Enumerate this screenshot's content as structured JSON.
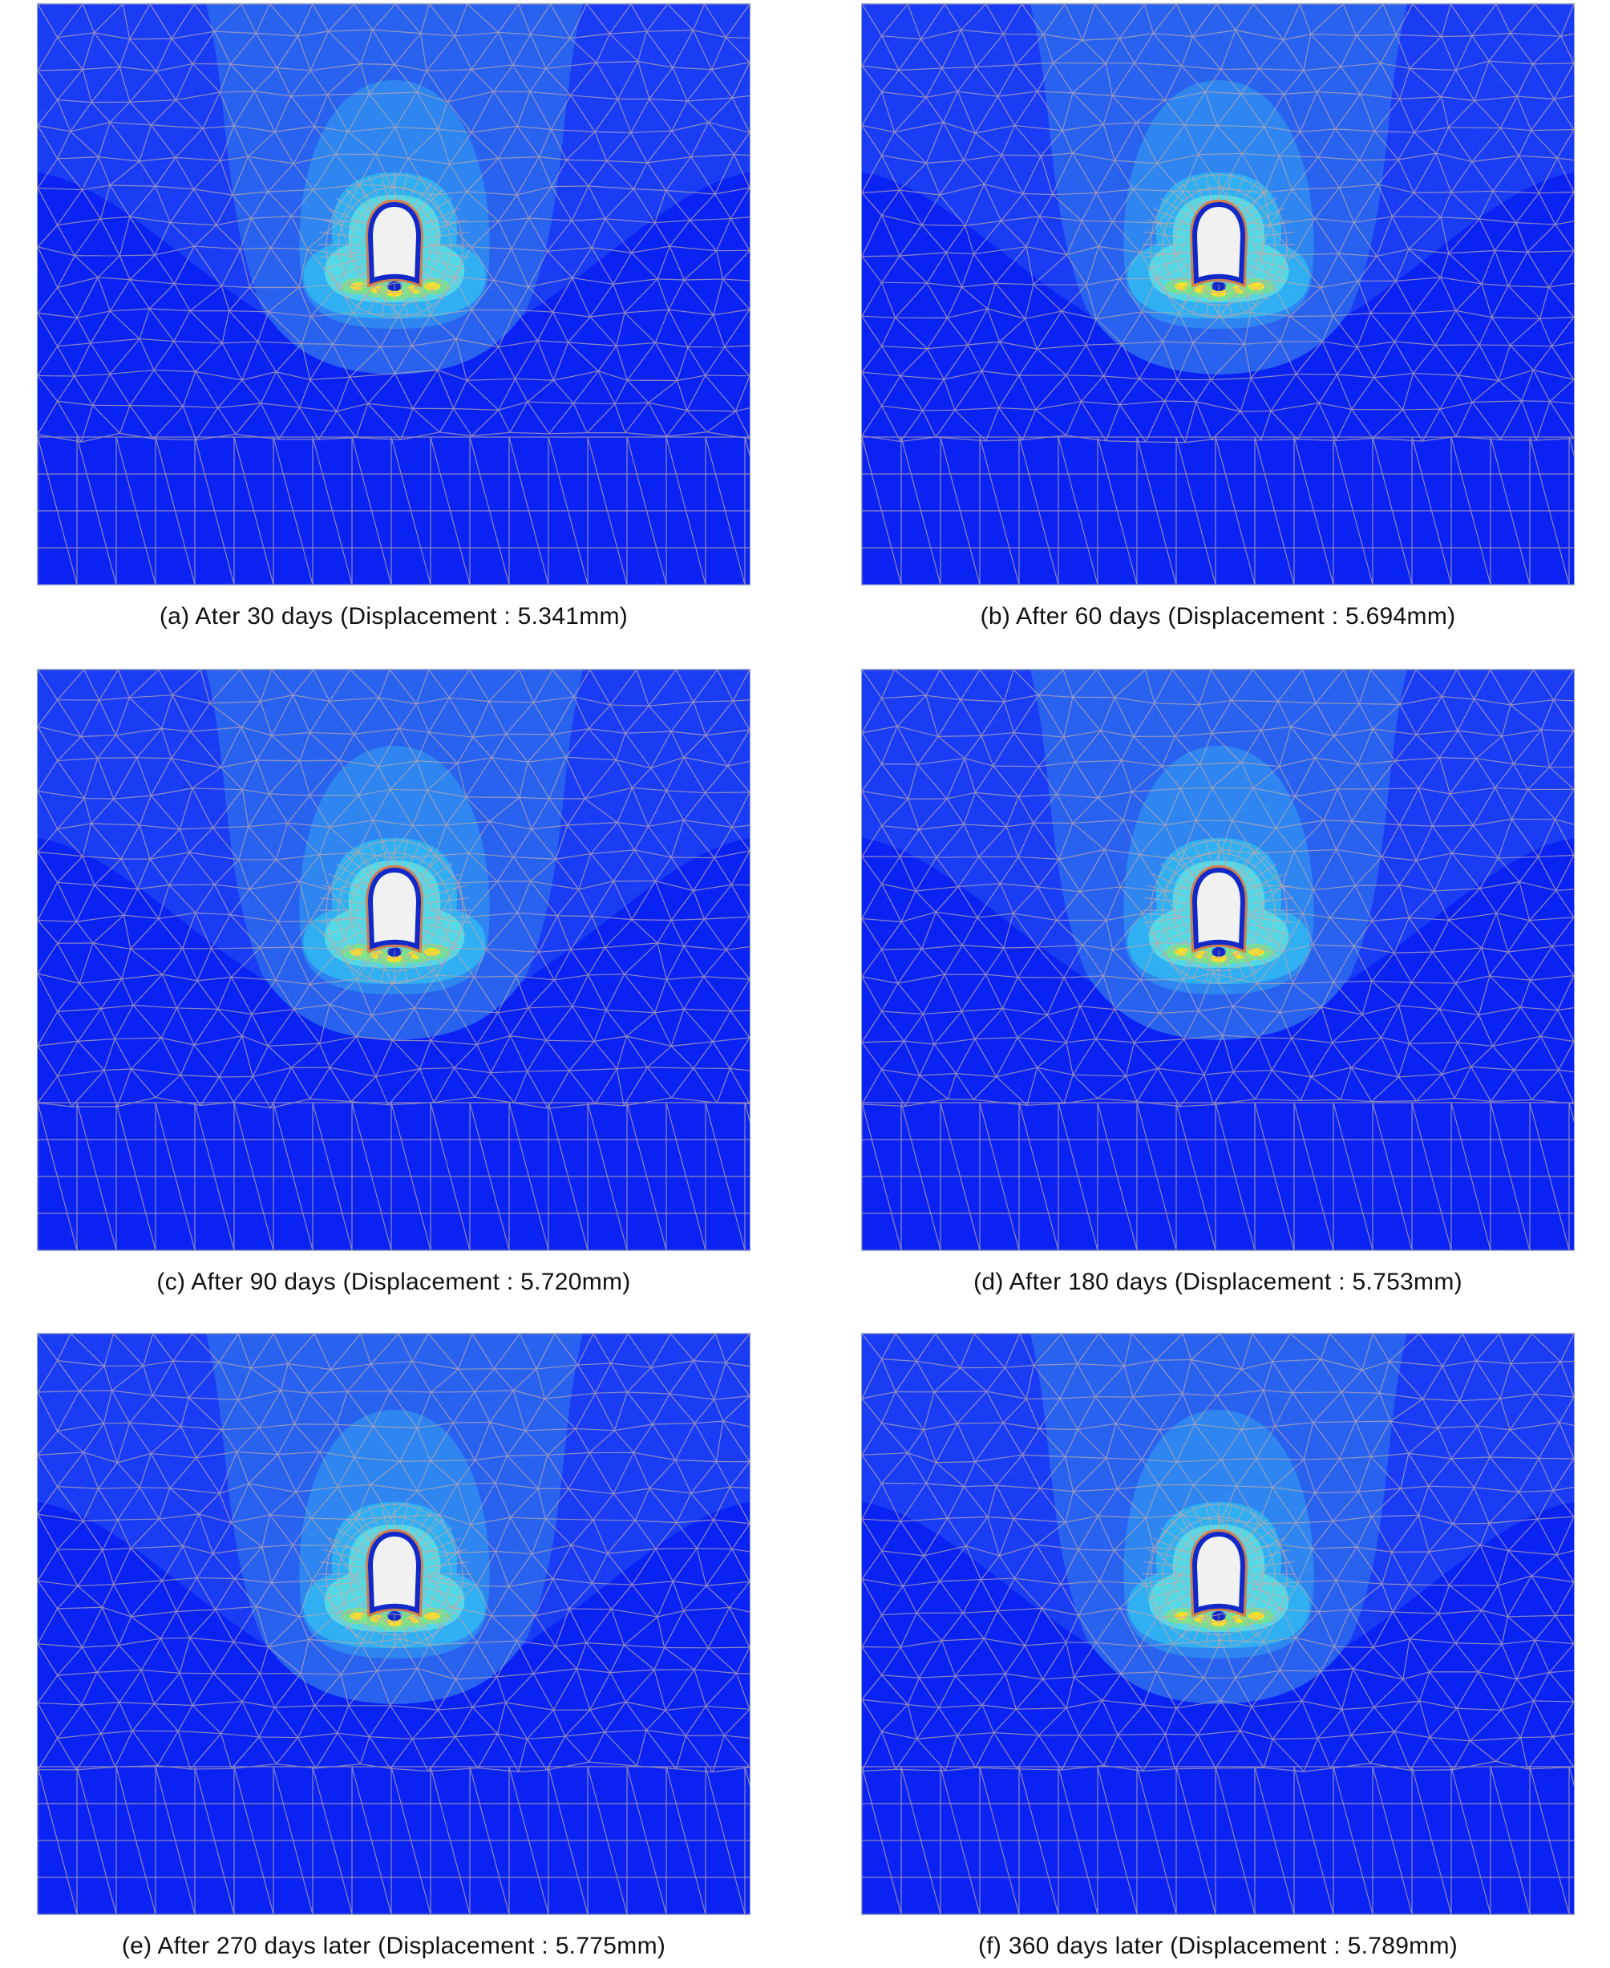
{
  "colors": {
    "outer_field": "#0b23f2",
    "field_2": "#1a3cf5",
    "field_3": "#2a62f0",
    "field_4": "#2f86f0",
    "field_5": "#30b0f2",
    "field_6": "#55d8e6",
    "hot_yellow": "#f6e12a",
    "hot_green": "#7be38a",
    "tunnel_fill": "#f1f1f1",
    "tunnel_ring": "#1029c8",
    "mesh_line": "#b9a8ae"
  },
  "panels": [
    {
      "caption": "(a)  Ater  30  days  (Displacement  :  5.341mm)"
    },
    {
      "caption": "(b)  After  60  days  (Displacement  :  5.694mm)"
    },
    {
      "caption": "(c)  After  90  days  (Displacement  :  5.720mm)"
    },
    {
      "caption": "(d)  After  180  days  (Displacement  :  5.753mm)"
    },
    {
      "caption": "(e)  After  270  days  later  (Displacement  :  5.775mm)"
    },
    {
      "caption": "(f)  360  days  later  (Displacement  :  5.789mm)"
    }
  ]
}
